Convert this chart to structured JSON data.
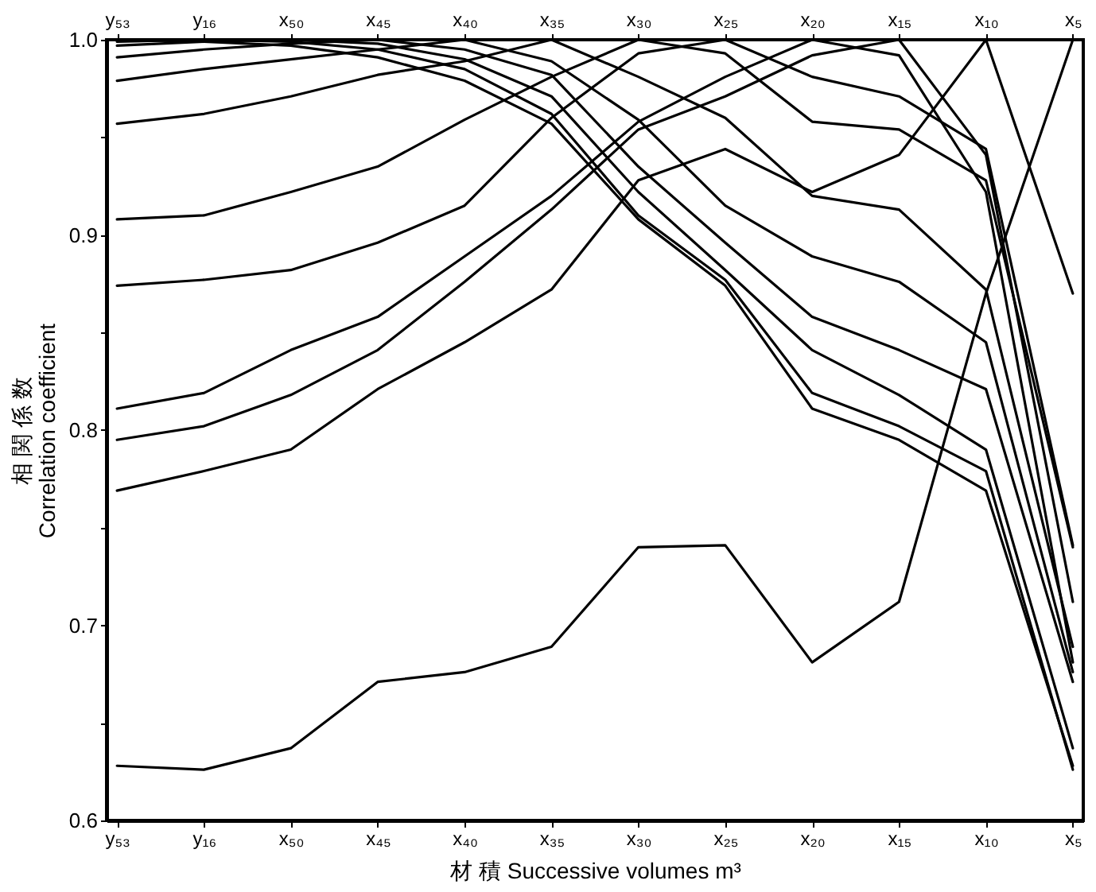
{
  "chart_data": {
    "type": "line",
    "xlabel": "材 積   Successive volumes   m³",
    "ylabel": "相 関 係 数\nCorrelation coefficient",
    "categories": [
      "y₅₃",
      "y₁₆",
      "x₅₀",
      "x₄₅",
      "x₄₀",
      "x₃₅",
      "x₃₀",
      "x₂₅",
      "x₂₀",
      "x₁₅",
      "x₁₀",
      "x₅"
    ],
    "ylim": [
      0.6,
      1.0
    ],
    "yticks": [
      0.6,
      {
        "value": 0.65,
        "label": null
      },
      0.7,
      {
        "value": 0.75,
        "label": null
      },
      0.8,
      {
        "value": 0.85,
        "label": null
      },
      0.9,
      {
        "value": 0.95,
        "label": null
      },
      {
        "value": 1.0,
        "label": "1.0"
      }
    ],
    "grid": false,
    "legend": false,
    "marker": "none",
    "line_style": "solid",
    "series": [
      {
        "color": "#000000",
        "values": [
          1,
          0.999,
          0.997,
          0.991,
          0.979,
          0.957,
          0.908,
          0.874,
          0.811,
          0.795,
          0.769,
          0.628
        ]
      },
      {
        "color": "#000000",
        "values": [
          0.999,
          1,
          0.999,
          0.995,
          0.985,
          0.962,
          0.91,
          0.877,
          0.819,
          0.802,
          0.779,
          0.626
        ]
      },
      {
        "color": "#000000",
        "values": [
          0.997,
          0.999,
          1,
          0.998,
          0.99,
          0.971,
          0.922,
          0.882,
          0.841,
          0.818,
          0.79,
          0.637
        ]
      },
      {
        "color": "#000000",
        "values": [
          0.991,
          0.995,
          0.998,
          1,
          0.995,
          0.982,
          0.935,
          0.896,
          0.858,
          0.841,
          0.821,
          0.671
        ]
      },
      {
        "color": "#000000",
        "values": [
          0.979,
          0.985,
          0.99,
          0.995,
          1,
          0.989,
          0.959,
          0.915,
          0.889,
          0.876,
          0.845,
          0.676
        ]
      },
      {
        "color": "#000000",
        "values": [
          0.957,
          0.962,
          0.971,
          0.982,
          0.989,
          1,
          0.981,
          0.96,
          0.92,
          0.913,
          0.872,
          0.689
        ]
      },
      {
        "color": "#000000",
        "values": [
          0.908,
          0.91,
          0.922,
          0.935,
          0.959,
          0.981,
          1,
          0.993,
          0.958,
          0.954,
          0.928,
          0.74
        ]
      },
      {
        "color": "#000000",
        "values": [
          0.874,
          0.877,
          0.882,
          0.896,
          0.915,
          0.96,
          0.993,
          1,
          0.981,
          0.971,
          0.944,
          0.741
        ]
      },
      {
        "color": "#000000",
        "values": [
          0.811,
          0.819,
          0.841,
          0.858,
          0.889,
          0.92,
          0.958,
          0.981,
          1,
          0.992,
          0.922,
          0.681
        ]
      },
      {
        "color": "#000000",
        "values": [
          0.795,
          0.802,
          0.818,
          0.841,
          0.876,
          0.913,
          0.954,
          0.971,
          0.992,
          1,
          0.941,
          0.712
        ]
      },
      {
        "color": "#000000",
        "values": [
          0.769,
          0.779,
          0.79,
          0.821,
          0.845,
          0.872,
          0.928,
          0.944,
          0.922,
          0.941,
          1,
          0.87
        ]
      },
      {
        "color": "#000000",
        "values": [
          0.628,
          0.626,
          0.637,
          0.671,
          0.676,
          0.689,
          0.74,
          0.741,
          0.681,
          0.712,
          0.87,
          1
        ]
      }
    ]
  }
}
